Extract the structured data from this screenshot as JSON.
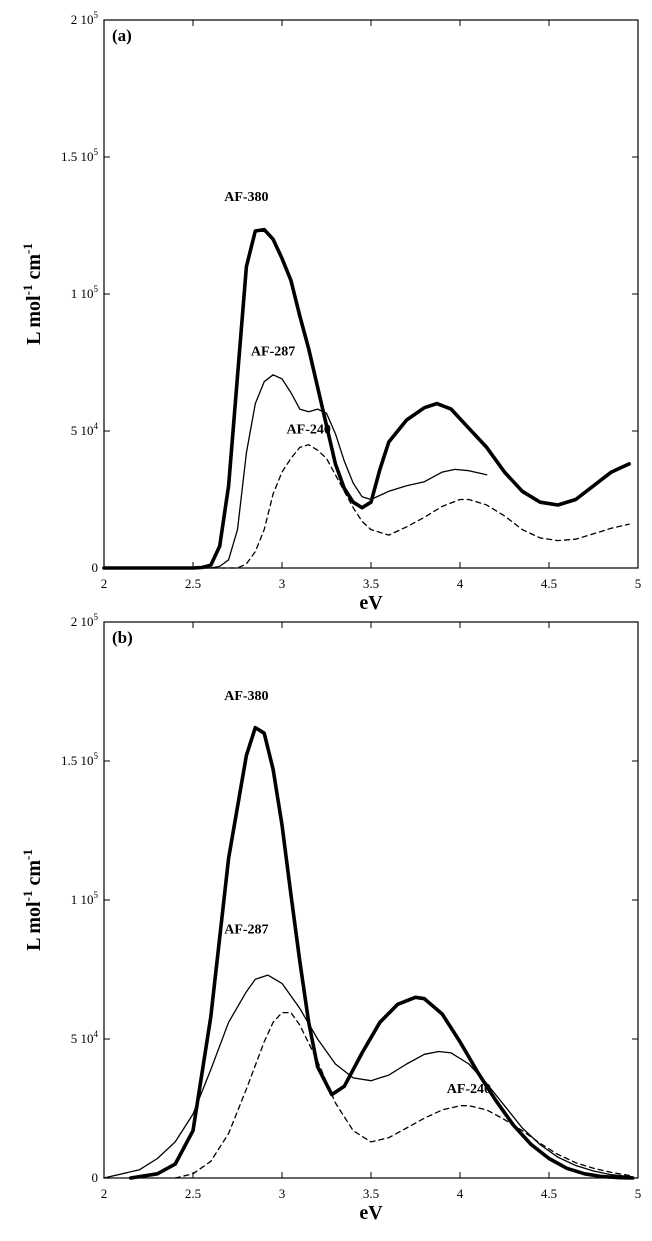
{
  "chart_data": [
    {
      "panel": "(a)",
      "type": "line",
      "xlabel": "eV",
      "ylabel": "L mol-1 cm-1",
      "xlim": [
        2,
        5
      ],
      "ylim": [
        0,
        200000
      ],
      "x_ticks": [
        "2",
        "2.5",
        "3",
        "3.5",
        "4",
        "4.5",
        "5"
      ],
      "y_ticks": [
        {
          "value": 0,
          "mantissa": "0",
          "exponent": ""
        },
        {
          "value": 50000,
          "mantissa": "5 10",
          "exponent": "4"
        },
        {
          "value": 100000,
          "mantissa": "1 10",
          "exponent": "5"
        },
        {
          "value": 150000,
          "mantissa": "1.5 10",
          "exponent": "5"
        },
        {
          "value": 200000,
          "mantissa": "2 10",
          "exponent": "5"
        }
      ],
      "annotations": [
        {
          "text": "AF-380",
          "x": 2.8,
          "y": 134000
        },
        {
          "text": "AF-287",
          "x": 2.95,
          "y": 77500
        },
        {
          "text": "AF-240",
          "x": 3.15,
          "y": 49000
        }
      ],
      "series": [
        {
          "style": "thick",
          "x": [
            2.0,
            2.5,
            2.55,
            2.6,
            2.65,
            2.7,
            2.75,
            2.8,
            2.85,
            2.9,
            2.95,
            3.0,
            3.05,
            3.1,
            3.15,
            3.2,
            3.25,
            3.3,
            3.35,
            3.4,
            3.45,
            3.5,
            3.55,
            3.6,
            3.7,
            3.8,
            3.87,
            3.95,
            4.05,
            4.15,
            4.25,
            4.35,
            4.45,
            4.55,
            4.65,
            4.75,
            4.85,
            4.95
          ],
          "y": [
            0,
            0,
            200,
            1000,
            8000,
            30000,
            70000,
            110000,
            123000,
            123500,
            120000,
            113000,
            105000,
            92000,
            80000,
            66000,
            52000,
            38000,
            29000,
            24000,
            22000,
            24000,
            36000,
            46000,
            54000,
            58500,
            60000,
            58000,
            51000,
            44000,
            35000,
            28000,
            24000,
            23000,
            25000,
            30000,
            35000,
            38000
          ]
        },
        {
          "style": "thin",
          "x": [
            2.0,
            2.6,
            2.65,
            2.7,
            2.75,
            2.8,
            2.85,
            2.9,
            2.95,
            3.0,
            3.05,
            3.1,
            3.15,
            3.2,
            3.25,
            3.3,
            3.35,
            3.4,
            3.45,
            3.5,
            3.55,
            3.6,
            3.7,
            3.8,
            3.9,
            3.97,
            4.05,
            4.15
          ],
          "y": [
            0,
            0,
            600,
            3000,
            14000,
            42000,
            60000,
            68000,
            70500,
            69000,
            64000,
            58000,
            57000,
            58000,
            56500,
            49000,
            39000,
            31000,
            26000,
            25000,
            26500,
            28000,
            30000,
            31500,
            35000,
            36000,
            35500,
            34000
          ]
        },
        {
          "style": "dashed",
          "x": [
            2.0,
            2.75,
            2.8,
            2.85,
            2.9,
            2.95,
            3.0,
            3.05,
            3.1,
            3.15,
            3.2,
            3.25,
            3.3,
            3.35,
            3.4,
            3.45,
            3.5,
            3.6,
            3.7,
            3.8,
            3.9,
            4.0,
            4.05,
            4.15,
            4.25,
            4.35,
            4.45,
            4.55,
            4.65,
            4.75,
            4.85,
            4.95
          ],
          "y": [
            0,
            0,
            1500,
            6000,
            14000,
            27000,
            35000,
            40000,
            44000,
            45000,
            43000,
            40000,
            34000,
            28000,
            22000,
            17000,
            14000,
            12000,
            15000,
            18500,
            22500,
            25000,
            25000,
            23000,
            19000,
            14000,
            11000,
            10000,
            10500,
            12500,
            14500,
            16000
          ]
        }
      ]
    },
    {
      "panel": "(b)",
      "type": "line",
      "xlabel": "eV",
      "ylabel": "L mol-1 cm-1",
      "xlim": [
        2,
        5
      ],
      "ylim": [
        0,
        200000
      ],
      "x_ticks": [
        "2",
        "2.5",
        "3",
        "3.5",
        "4",
        "4.5",
        "5"
      ],
      "y_ticks": [
        {
          "value": 0,
          "mantissa": "0",
          "exponent": ""
        },
        {
          "value": 50000,
          "mantissa": "5 10",
          "exponent": "4"
        },
        {
          "value": 100000,
          "mantissa": "1 10",
          "exponent": "5"
        },
        {
          "value": 150000,
          "mantissa": "1.5 10",
          "exponent": "5"
        },
        {
          "value": 200000,
          "mantissa": "2 10",
          "exponent": "5"
        }
      ],
      "annotations": [
        {
          "text": "AF-380",
          "x": 2.8,
          "y": 172000
        },
        {
          "text": "AF-287",
          "x": 2.8,
          "y": 88000
        },
        {
          "text": "AF-240",
          "x": 4.05,
          "y": 30500
        }
      ],
      "series": [
        {
          "style": "thick",
          "x": [
            2.15,
            2.3,
            2.4,
            2.5,
            2.6,
            2.7,
            2.8,
            2.85,
            2.9,
            2.95,
            3.0,
            3.05,
            3.1,
            3.15,
            3.2,
            3.28,
            3.35,
            3.45,
            3.55,
            3.65,
            3.75,
            3.8,
            3.9,
            4.0,
            4.1,
            4.2,
            4.3,
            4.4,
            4.5,
            4.6,
            4.7,
            4.8,
            4.9,
            4.97
          ],
          "y": [
            0,
            1500,
            5000,
            17000,
            58000,
            115000,
            152000,
            162000,
            160000,
            147000,
            127000,
            102000,
            78000,
            56000,
            40000,
            30000,
            33000,
            45000,
            56000,
            62500,
            65000,
            64500,
            59000,
            49000,
            38000,
            28000,
            19000,
            12000,
            7000,
            3500,
            1500,
            500,
            100,
            0
          ]
        },
        {
          "style": "thin",
          "x": [
            2.0,
            2.2,
            2.3,
            2.4,
            2.5,
            2.6,
            2.7,
            2.8,
            2.85,
            2.92,
            3.0,
            3.1,
            3.2,
            3.3,
            3.4,
            3.5,
            3.6,
            3.7,
            3.8,
            3.88,
            3.95,
            4.05,
            4.15,
            4.25,
            4.35,
            4.45,
            4.55,
            4.65,
            4.75,
            4.85,
            4.97
          ],
          "y": [
            0,
            3000,
            7000,
            13000,
            23000,
            39000,
            56000,
            67000,
            71500,
            73000,
            70000,
            61000,
            50000,
            41000,
            36000,
            35000,
            37000,
            41000,
            44500,
            45500,
            45000,
            41000,
            34000,
            26000,
            18000,
            12000,
            7500,
            4500,
            2500,
            1200,
            400
          ]
        },
        {
          "style": "dashed",
          "x": [
            2.4,
            2.5,
            2.6,
            2.7,
            2.8,
            2.9,
            2.95,
            3.0,
            3.05,
            3.1,
            3.2,
            3.3,
            3.4,
            3.5,
            3.6,
            3.7,
            3.8,
            3.9,
            4.0,
            4.05,
            4.15,
            4.25,
            4.35,
            4.45,
            4.55,
            4.65,
            4.75,
            4.85,
            4.97
          ],
          "y": [
            0,
            1500,
            6000,
            16000,
            32000,
            49000,
            56000,
            59500,
            59500,
            55000,
            42000,
            27000,
            17000,
            13000,
            14500,
            18000,
            21500,
            24500,
            26000,
            26000,
            24500,
            21000,
            17000,
            12500,
            8500,
            5500,
            3500,
            2000,
            700
          ]
        }
      ]
    }
  ]
}
